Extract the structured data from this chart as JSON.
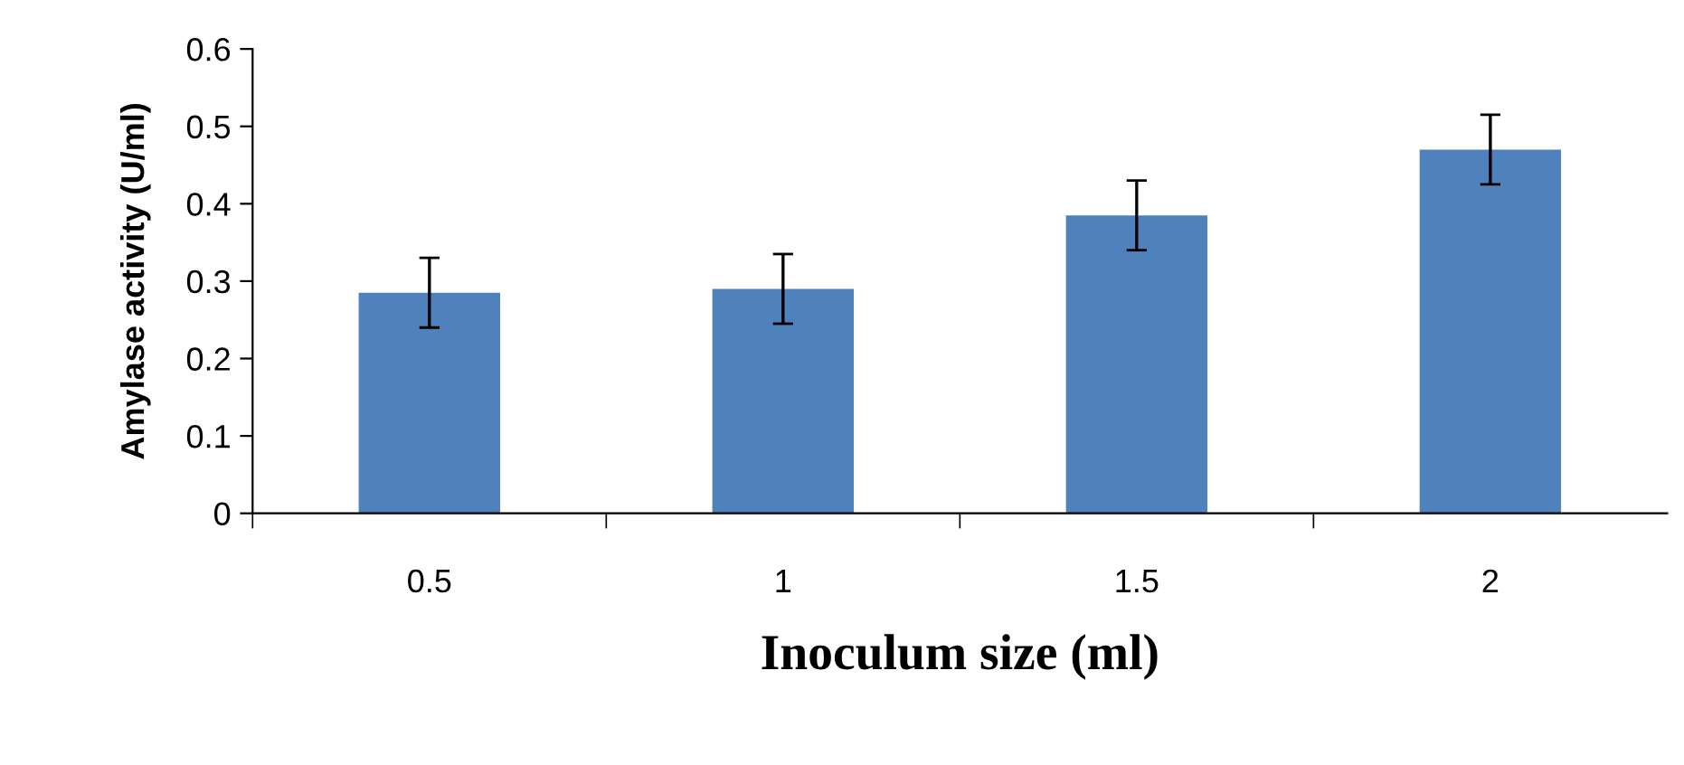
{
  "chart_data": {
    "type": "bar",
    "xlabel": "Inoculum size (ml)",
    "ylabel": "Amylase activity (U/ml)",
    "categories": [
      "0.5",
      "1",
      "1.5",
      "2"
    ],
    "series": [
      {
        "color": "#4f81bd",
        "values": [
          0.285,
          0.29,
          0.385,
          0.47
        ],
        "errors": [
          0.045,
          0.045,
          0.045,
          0.045
        ]
      }
    ],
    "ylim": [
      0,
      0.6
    ],
    "yticks": [
      0,
      0.1,
      0.2,
      0.3,
      0.4,
      0.5,
      0.6
    ],
    "grid": false,
    "legend": false
  }
}
